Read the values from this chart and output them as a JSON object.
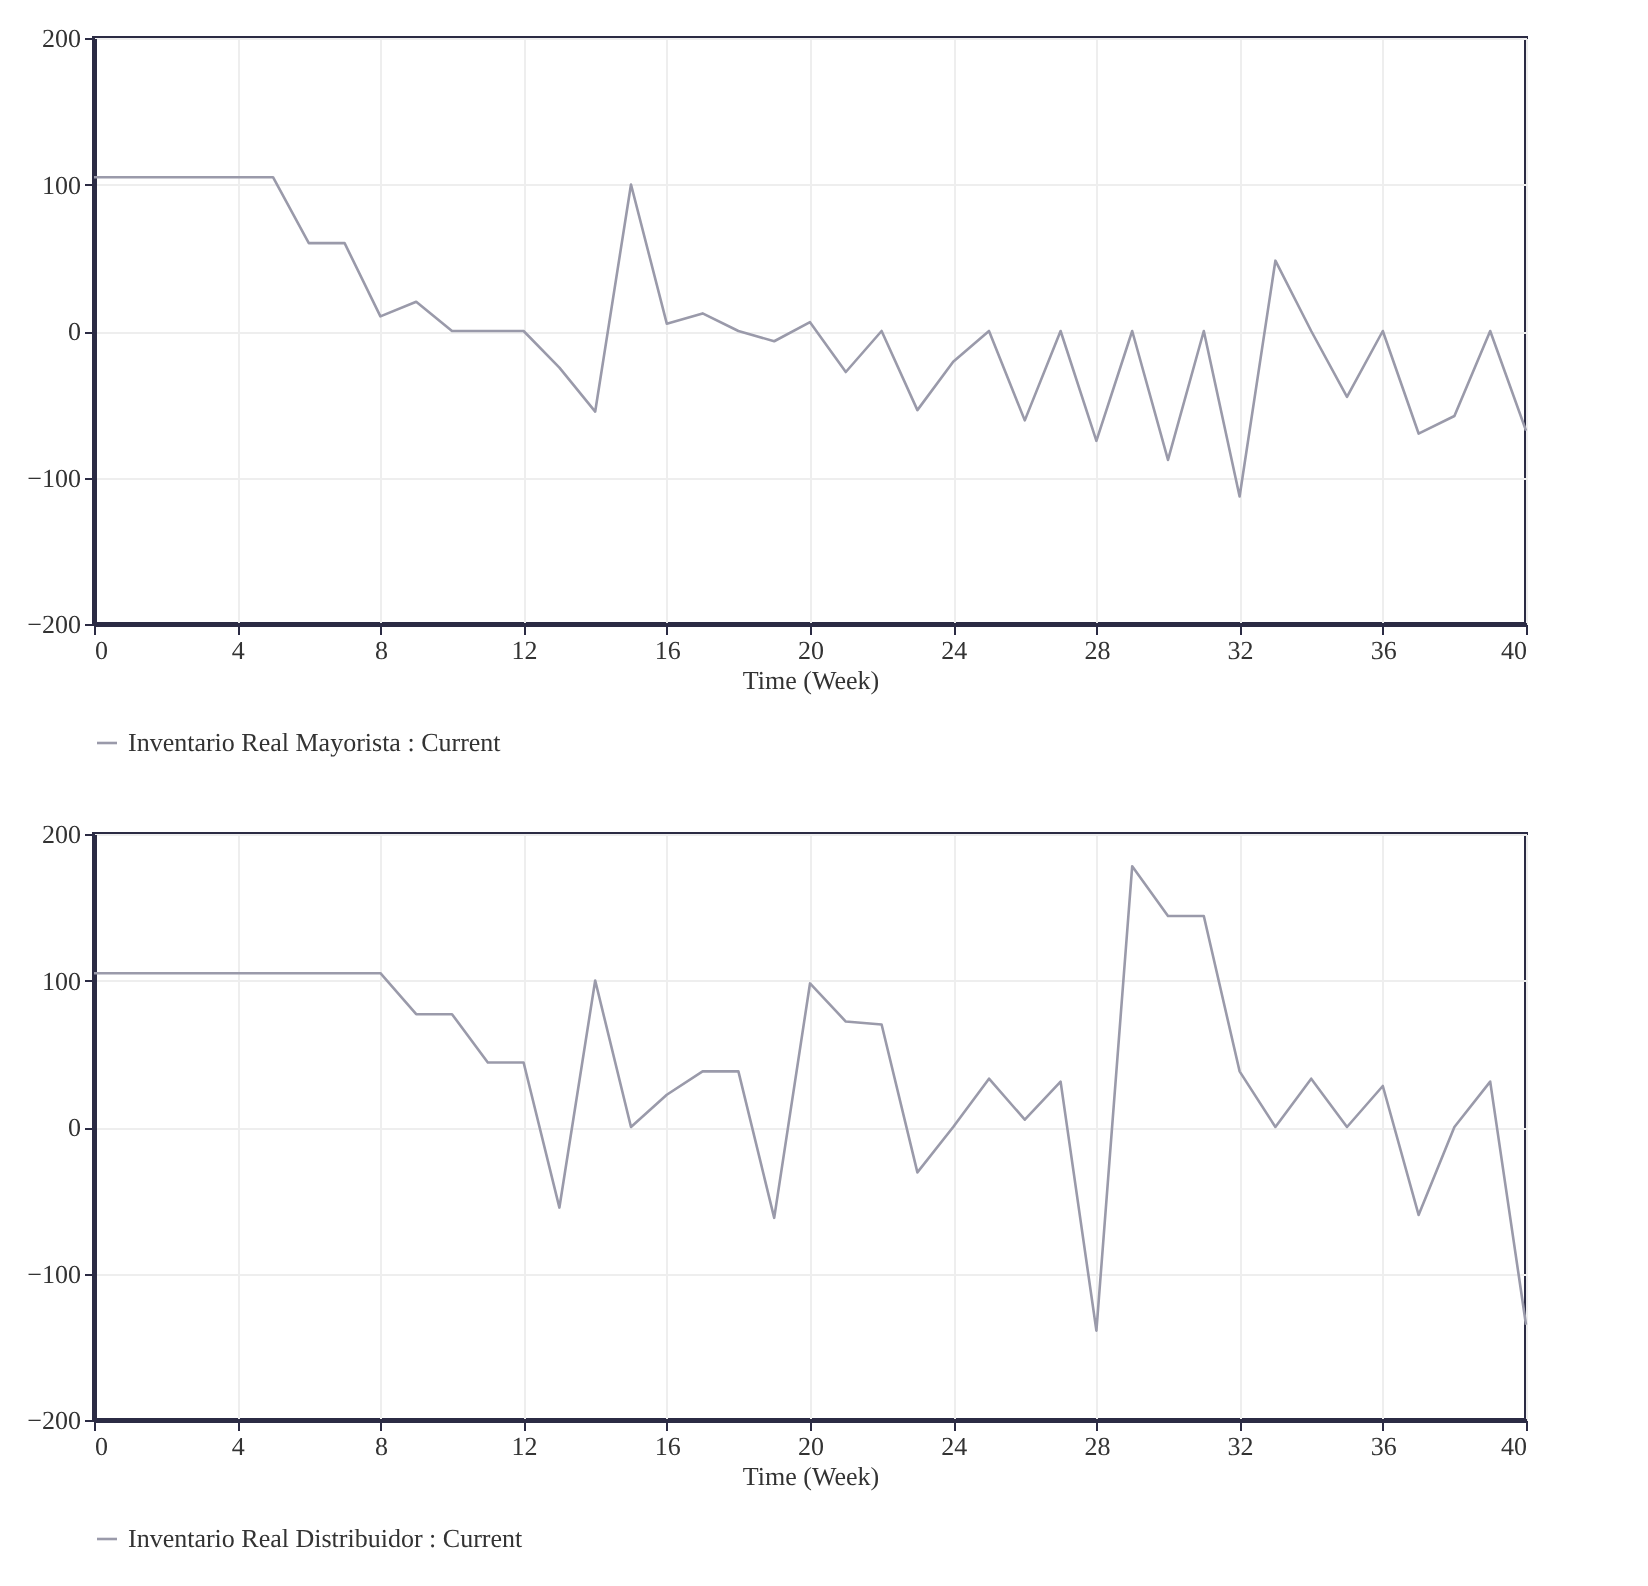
{
  "chart_data": [
    {
      "type": "line",
      "xlabel": "Time (Week)",
      "x": [
        0,
        1,
        2,
        3,
        4,
        5,
        6,
        7,
        8,
        9,
        10,
        11,
        12,
        13,
        14,
        15,
        16,
        17,
        18,
        19,
        20,
        21,
        22,
        23,
        24,
        25,
        26,
        27,
        28,
        29,
        30,
        31,
        32,
        33,
        34,
        35,
        36,
        37,
        38,
        39,
        40
      ],
      "series": [
        {
          "name": "Inventario Real Mayorista : Current",
          "color": "#9a9aaa",
          "values": [
            105,
            105,
            105,
            105,
            105,
            105,
            60,
            60,
            10,
            20,
            0,
            0,
            0,
            -25,
            -55,
            100,
            5,
            12,
            0,
            -7,
            6,
            -28,
            0,
            -54,
            -21,
            0,
            -61,
            0,
            -75,
            0,
            -88,
            0,
            -113,
            48,
            0,
            -45,
            0,
            -70,
            -58,
            0,
            -68
          ]
        }
      ],
      "xlim": [
        0,
        40
      ],
      "xticks": [
        0,
        4,
        8,
        12,
        16,
        20,
        24,
        28,
        32,
        36,
        40
      ],
      "ylim": [
        -200,
        200
      ],
      "yticks": [
        -200,
        -100,
        0,
        100,
        200
      ],
      "grid": true,
      "legend": "bottom left"
    },
    {
      "type": "line",
      "xlabel": "Time (Week)",
      "x": [
        0,
        1,
        2,
        3,
        4,
        5,
        6,
        7,
        8,
        9,
        10,
        11,
        12,
        13,
        14,
        15,
        16,
        17,
        18,
        19,
        20,
        21,
        22,
        23,
        24,
        25,
        26,
        27,
        28,
        29,
        30,
        31,
        32,
        33,
        34,
        35,
        36,
        37,
        38,
        39,
        40
      ],
      "series": [
        {
          "name": "Inventario Real Distribuidor : Current",
          "color": "#9a9aaa",
          "values": [
            105,
            105,
            105,
            105,
            105,
            105,
            105,
            105,
            105,
            77,
            77,
            44,
            44,
            -55,
            100,
            0,
            22,
            38,
            38,
            -62,
            98,
            72,
            70,
            -31,
            0,
            33,
            5,
            31,
            -139,
            178,
            144,
            144,
            38,
            0,
            33,
            0,
            28,
            -60,
            0,
            31,
            -135
          ]
        }
      ],
      "xlim": [
        0,
        40
      ],
      "xticks": [
        0,
        4,
        8,
        12,
        16,
        20,
        24,
        28,
        32,
        36,
        40
      ],
      "ylim": [
        -200,
        200
      ],
      "yticks": [
        -200,
        -100,
        0,
        100,
        200
      ],
      "grid": true,
      "legend": "bottom left"
    }
  ]
}
